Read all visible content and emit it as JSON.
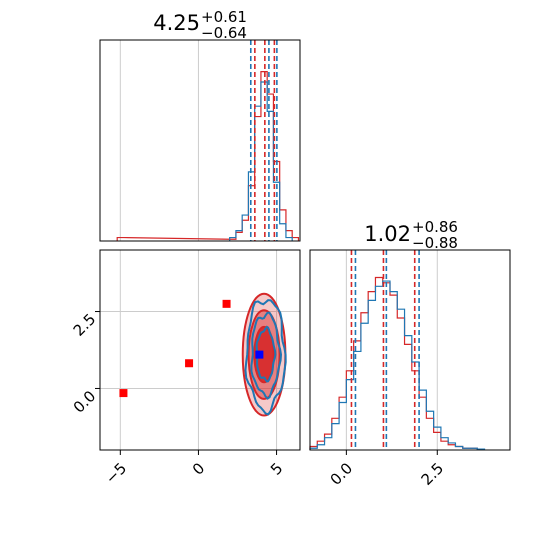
{
  "colors": {
    "red": "#d62728",
    "blue": "#1f77b4",
    "grid": "#cccccc",
    "red_marker": "#ff0000",
    "blue_marker": "#0000ff"
  },
  "chart_data": [
    {
      "type": "histogram",
      "panel": "top-left",
      "title": {
        "main": "4.25",
        "plus": "+0.61",
        "minus": "−0.64"
      },
      "xlim": [
        -6.3,
        6.5
      ],
      "grid": true,
      "quantiles": {
        "red": [
          3.61,
          4.25,
          4.86
        ],
        "blue": [
          3.35,
          4.51,
          5.02
        ]
      },
      "series": [
        {
          "color": "red",
          "centers": [
            -5.0,
            2.2,
            2.6,
            3.0,
            3.4,
            3.8,
            4.2,
            4.6,
            5.0,
            5.4,
            5.8,
            6.2
          ],
          "heights": [
            0.02,
            0.01,
            0.05,
            0.12,
            0.32,
            0.72,
            0.98,
            0.85,
            0.46,
            0.18,
            0.06,
            0.02
          ]
        },
        {
          "color": "blue",
          "centers": [
            2.2,
            2.6,
            3.0,
            3.4,
            3.8,
            4.2,
            4.6,
            5.0,
            5.4,
            5.8
          ],
          "heights": [
            0.02,
            0.06,
            0.15,
            0.4,
            0.78,
            0.92,
            0.75,
            0.34,
            0.1,
            0.02
          ]
        }
      ]
    },
    {
      "type": "contour",
      "panel": "bottom-left",
      "xlim": [
        -6.3,
        6.5
      ],
      "ylim": [
        -2.0,
        4.5
      ],
      "xticks": [
        "−5",
        "0",
        "5"
      ],
      "xtick_values": [
        -5,
        0,
        5
      ],
      "yticks": [
        "0.0",
        "2.5"
      ],
      "ytick_values": [
        0.0,
        2.5
      ],
      "grid": true,
      "red_center": [
        4.2,
        1.1
      ],
      "red_sigma": [
        0.62,
        0.9
      ],
      "blue_center": [
        4.3,
        1.1
      ],
      "blue_sigma": [
        0.6,
        0.88
      ],
      "red_points": [
        [
          -4.8,
          -0.15
        ],
        [
          -0.6,
          0.82
        ],
        [
          1.8,
          2.75
        ]
      ],
      "blue_point": [
        3.9,
        1.1
      ]
    },
    {
      "type": "histogram",
      "panel": "bottom-right",
      "title": {
        "main": "1.02",
        "plus": "+0.86",
        "minus": "−0.88"
      },
      "xlim": [
        -1.0,
        4.5
      ],
      "xticks": [
        "0.0",
        "2.5"
      ],
      "xtick_values": [
        0.0,
        2.5
      ],
      "grid": true,
      "quantiles": {
        "red": [
          0.14,
          1.02,
          1.88
        ],
        "blue": [
          0.25,
          1.1,
          2.0
        ]
      },
      "series": [
        {
          "color": "red",
          "centers": [
            -0.9,
            -0.7,
            -0.5,
            -0.3,
            -0.1,
            0.1,
            0.3,
            0.5,
            0.7,
            0.9,
            1.1,
            1.3,
            1.5,
            1.7,
            1.9,
            2.1,
            2.3,
            2.5,
            2.7,
            2.9,
            3.1,
            3.3,
            3.5
          ],
          "heights": [
            0.02,
            0.05,
            0.09,
            0.18,
            0.3,
            0.45,
            0.62,
            0.78,
            0.9,
            0.98,
            0.95,
            0.88,
            0.75,
            0.6,
            0.45,
            0.3,
            0.18,
            0.1,
            0.05,
            0.03,
            0.02,
            0.01,
            0.01
          ]
        },
        {
          "color": "blue",
          "centers": [
            -0.9,
            -0.7,
            -0.5,
            -0.3,
            -0.1,
            0.1,
            0.3,
            0.5,
            0.7,
            0.9,
            1.1,
            1.3,
            1.5,
            1.7,
            1.9,
            2.1,
            2.3,
            2.5,
            2.7,
            2.9,
            3.1,
            3.3,
            3.5,
            3.7
          ],
          "heights": [
            0.01,
            0.03,
            0.07,
            0.15,
            0.27,
            0.4,
            0.56,
            0.72,
            0.85,
            0.93,
            0.96,
            0.9,
            0.8,
            0.65,
            0.5,
            0.34,
            0.22,
            0.13,
            0.07,
            0.04,
            0.02,
            0.01,
            0.01,
            0.005
          ]
        }
      ]
    }
  ]
}
